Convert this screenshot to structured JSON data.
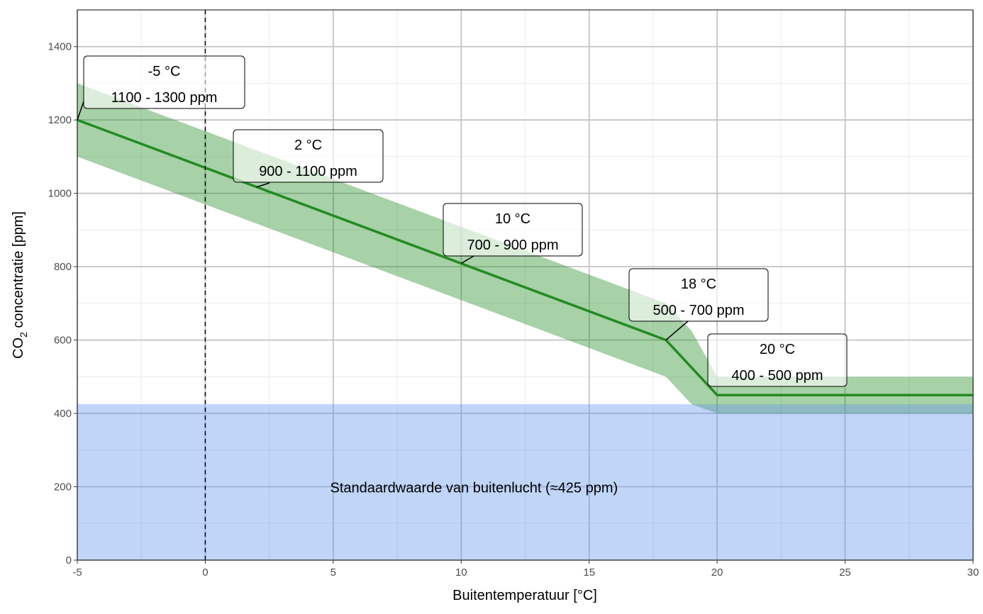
{
  "chart_data": {
    "type": "line",
    "xlabel": "Buitentemperatuur [°C]",
    "ylabel_main": "CO",
    "ylabel_sub": "2",
    "ylabel_rest": " concentratie [ppm]",
    "xlim": [
      -5,
      30
    ],
    "ylim": [
      0,
      1500
    ],
    "x_ticks": [
      -5,
      0,
      5,
      10,
      15,
      20,
      25,
      30
    ],
    "y_ticks": [
      0,
      200,
      400,
      600,
      800,
      1000,
      1200,
      1400
    ],
    "grid": true,
    "series": [
      {
        "x": [
          -5,
          18,
          20,
          30
        ],
        "y": [
          1200,
          600,
          450,
          450
        ],
        "color": "#228B22"
      }
    ],
    "band": {
      "upper": {
        "x": [
          -5,
          18,
          19,
          20,
          30
        ],
        "y": [
          1300,
          700,
          625,
          500,
          500
        ]
      },
      "lower": {
        "x": [
          -5,
          18,
          19,
          20,
          30
        ],
        "y": [
          1100,
          500,
          425,
          400,
          400
        ]
      },
      "color": "#228B22"
    },
    "reference_area": {
      "ymin": 0,
      "ymax": 425,
      "color": "#6495ED",
      "label": "Standaardwaarde van buitenlucht (≈425 ppm)"
    },
    "vline": {
      "x": 0,
      "style": "dashed"
    },
    "annotations": [
      {
        "x": -5,
        "y": 1200,
        "line1": "-5 °C",
        "line2": "1100 - 1300 ppm"
      },
      {
        "x": 2,
        "y": 1017,
        "line1": "2 °C",
        "line2": "900 - 1100 ppm"
      },
      {
        "x": 10,
        "y": 809,
        "line1": "10 °C",
        "line2": "700 - 900 ppm"
      },
      {
        "x": 18,
        "y": 600,
        "line1": "18 °C",
        "line2": "500 - 700 ppm"
      },
      {
        "x": 20,
        "y": 450,
        "line1": "20 °C",
        "line2": "400 - 500 ppm"
      }
    ]
  }
}
